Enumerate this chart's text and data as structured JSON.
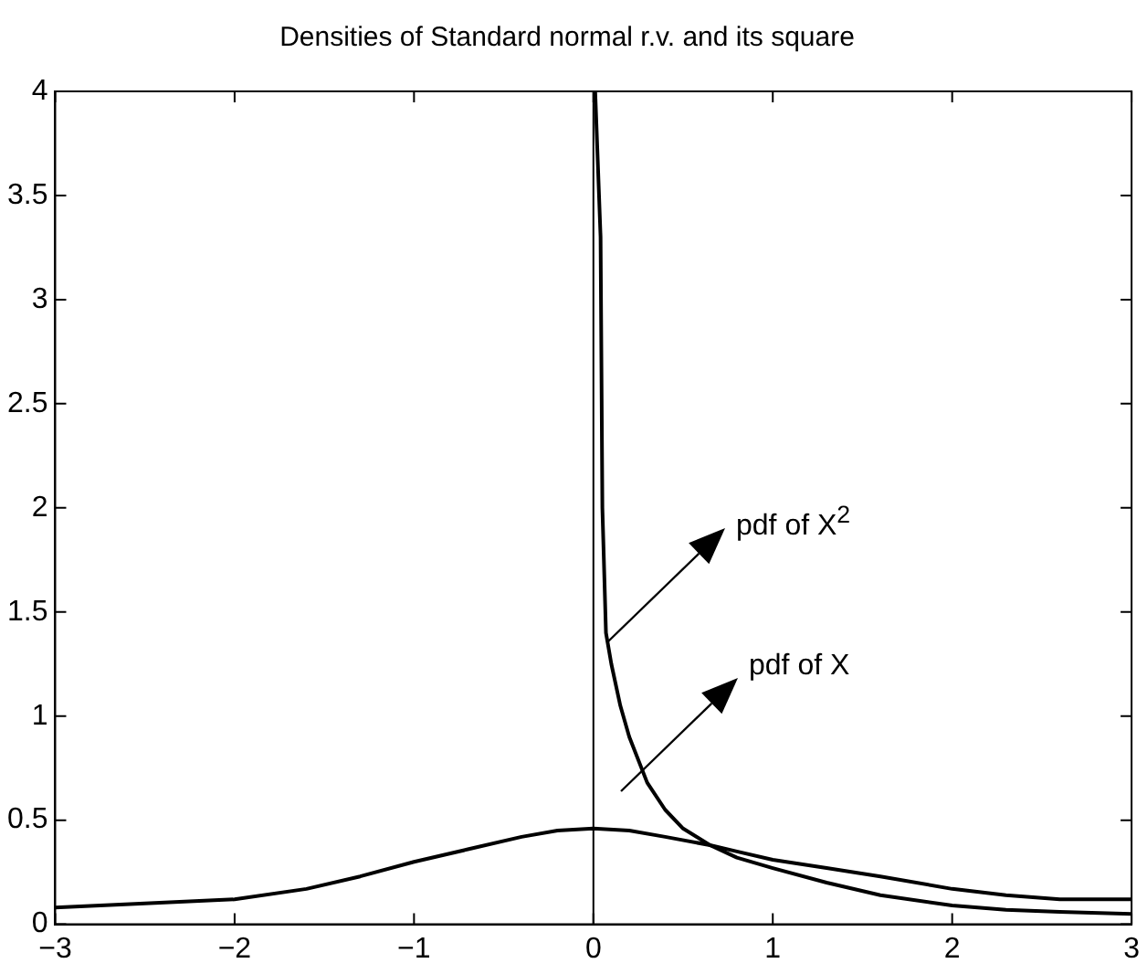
{
  "chart_data": {
    "type": "line",
    "title": "Densities of Standard normal r.v. and its square",
    "series": [
      {
        "color": "#000000",
        "x": [
          -3,
          -2.5,
          -2,
          -1.6,
          -1.3,
          -1,
          -0.7,
          -0.4,
          -0.2,
          0,
          0.2,
          0.4,
          0.65,
          0.8,
          1,
          1.3,
          1.6,
          2,
          2.3,
          2.6,
          3
        ],
        "values": [
          0.08,
          0.1,
          0.12,
          0.17,
          0.23,
          0.3,
          0.36,
          0.42,
          0.45,
          0.46,
          0.45,
          0.42,
          0.38,
          0.35,
          0.31,
          0.27,
          0.23,
          0.17,
          0.14,
          0.12,
          0.12
        ]
      },
      {
        "color": "#000000",
        "x": [
          0.01,
          0.04,
          0.05,
          0.07,
          0.1,
          0.15,
          0.2,
          0.3,
          0.4,
          0.5,
          0.65,
          0.8,
          1,
          1.3,
          1.6,
          2,
          2.3,
          2.6,
          3
        ],
        "values": [
          4,
          3.3,
          2,
          1.4,
          1.25,
          1.05,
          0.9,
          0.68,
          0.55,
          0.46,
          0.38,
          0.32,
          0.27,
          0.2,
          0.14,
          0.09,
          0.07,
          0.06,
          0.05
        ]
      }
    ],
    "xlim": [
      -3,
      3
    ],
    "xticks": [
      -3,
      -2,
      -1,
      0,
      1,
      2,
      3
    ],
    "ylim": [
      0,
      4
    ],
    "yticks": [
      0,
      0.5,
      1,
      1.5,
      2,
      2.5,
      3,
      3.5,
      4
    ],
    "ref_lines": [
      {
        "axis": "x",
        "value": 0,
        "color": "#000000"
      }
    ],
    "annotations": [
      "pdf of X$^{2}$",
      "pdf of X"
    ],
    "grid": false,
    "legend": false,
    "marker": "none",
    "line_style": "solid"
  }
}
